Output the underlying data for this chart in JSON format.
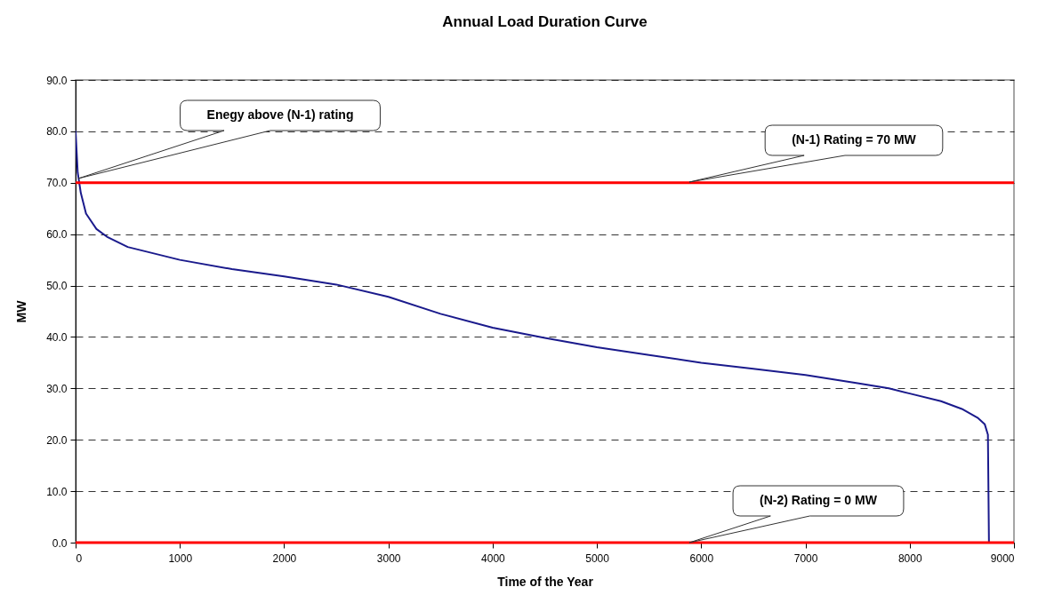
{
  "chart_data": {
    "type": "line",
    "title": "Annual Load Duration Curve",
    "xlabel": "Time of the Year",
    "ylabel": "MW",
    "x": [
      0,
      20,
      50,
      100,
      200,
      300,
      500,
      1000,
      1500,
      2000,
      2500,
      3000,
      3500,
      4000,
      4500,
      5000,
      5500,
      6000,
      6500,
      7000,
      7500,
      7800,
      8000,
      8300,
      8500,
      8650,
      8720,
      8750,
      8760
    ],
    "series": [
      {
        "color": "#1a1a8c",
        "values": [
          80,
          72,
          68,
          64,
          61,
          59.5,
          57.5,
          55,
          53.2,
          51.8,
          50.2,
          47.8,
          44.5,
          41.8,
          39.8,
          38,
          36.5,
          35,
          33.8,
          32.6,
          31,
          30,
          29,
          27.5,
          26,
          24.3,
          23,
          21,
          0
        ]
      }
    ],
    "xlim": [
      0,
      9000
    ],
    "xticks": [
      0,
      1000,
      2000,
      3000,
      4000,
      5000,
      6000,
      7000,
      8000,
      9000
    ],
    "ylim": [
      0,
      90
    ],
    "yticks": [
      {
        "value": 0,
        "label": "0.0"
      },
      {
        "value": 10,
        "label": "10.0"
      },
      {
        "value": 20,
        "label": "20.0"
      },
      {
        "value": 30,
        "label": "30.0"
      },
      {
        "value": 40,
        "label": "40.0"
      },
      {
        "value": 50,
        "label": "50.0"
      },
      {
        "value": 60,
        "label": "60.0"
      },
      {
        "value": 70,
        "label": "70.0"
      },
      {
        "value": 80,
        "label": "80.0"
      },
      {
        "value": 90,
        "label": "90.0"
      }
    ],
    "grid": "y",
    "marker": "none",
    "line_style": "solid",
    "ref_lines": [
      {
        "axis": "y",
        "value": 70,
        "color": "#ff0000"
      },
      {
        "axis": "y",
        "value": 0,
        "color": "#ff0000"
      }
    ],
    "annotations": [
      "Enegy above (N-1) rating",
      "(N-1) Rating = 70 MW",
      "(N-2) Rating = 0 MW"
    ]
  }
}
